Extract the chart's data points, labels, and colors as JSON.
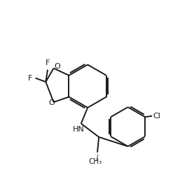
{
  "background_color": "#ffffff",
  "line_color": "#1a1a1a",
  "line_width": 1.4,
  "font_size": 8.0,
  "figsize": [
    2.77,
    2.73
  ],
  "dpi": 100,
  "xlim": [
    0,
    10
  ],
  "ylim": [
    0,
    10
  ]
}
